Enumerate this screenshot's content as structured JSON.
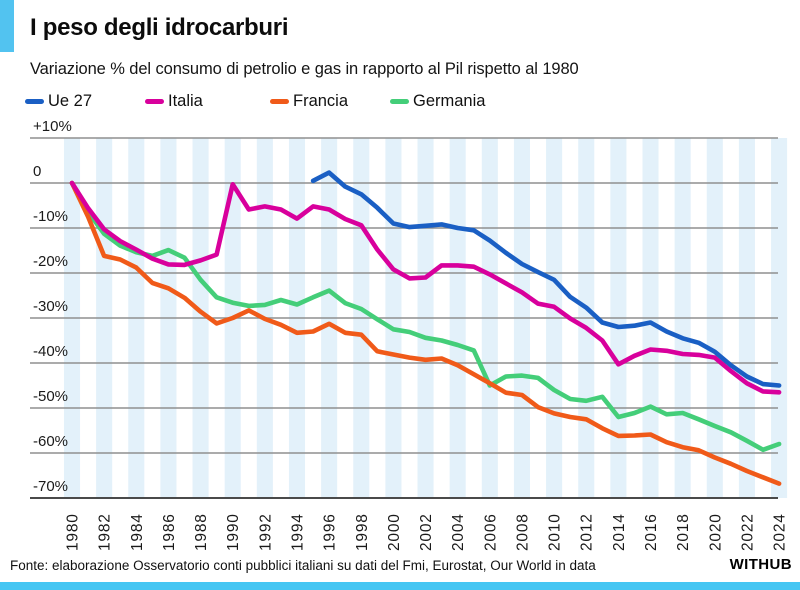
{
  "header": {
    "title": "I peso degli idrocarburi",
    "subtitle": "Variazione % del consumo di petrolio e gas in rapporto al Pil rispetto al 1980"
  },
  "legend": [
    {
      "label": "Ue 27",
      "color": "#1a5fc4"
    },
    {
      "label": "Italia",
      "color": "#d8009c"
    },
    {
      "label": "Francia",
      "color": "#f05a19"
    },
    {
      "label": "Germania",
      "color": "#44ce79"
    }
  ],
  "chart_data": {
    "type": "line",
    "title": "I peso degli idrocarburi",
    "subtitle": "Variazione % del consumo di petrolio e gas in rapporto al Pil rispetto al 1980",
    "xlabel": "",
    "ylabel": "",
    "ylim": [
      -70,
      10
    ],
    "grid": true,
    "legend_position": "top",
    "background_stripes_color": "#e3f1fa",
    "x": [
      1980,
      1981,
      1982,
      1983,
      1984,
      1985,
      1986,
      1987,
      1988,
      1989,
      1990,
      1991,
      1992,
      1993,
      1994,
      1995,
      1996,
      1997,
      1998,
      1999,
      2000,
      2001,
      2002,
      2003,
      2004,
      2005,
      2006,
      2007,
      2008,
      2009,
      2010,
      2011,
      2012,
      2013,
      2014,
      2015,
      2016,
      2017,
      2018,
      2019,
      2020,
      2021,
      2022,
      2023,
      2024
    ],
    "x_tick_labels": [
      "1980",
      "1982",
      "1984",
      "1986",
      "1988",
      "1990",
      "1992",
      "1994",
      "1996",
      "1998",
      "2000",
      "2002",
      "2004",
      "2006",
      "2008",
      "2010",
      "2012",
      "2014",
      "2016",
      "2018",
      "2020",
      "2022",
      "2024"
    ],
    "y_ticks": [
      "+10%",
      "0",
      "-10%",
      "-20%",
      "-30%",
      "-40%",
      "-50%",
      "-60%",
      "-70%"
    ],
    "y_tick_values": [
      10,
      0,
      -10,
      -20,
      -30,
      -40,
      -50,
      -60,
      -70
    ],
    "series": [
      {
        "name": "Ue 27",
        "color": "#1a5fc4",
        "values": [
          null,
          null,
          null,
          null,
          null,
          null,
          null,
          null,
          null,
          null,
          null,
          null,
          null,
          null,
          null,
          0.5,
          2.3,
          -0.8,
          -2.5,
          -5.5,
          -9,
          -9.8,
          -9.5,
          -9.2,
          -10,
          -10.5,
          -12.8,
          -15.5,
          -18,
          -19.8,
          -21.5,
          -25.3,
          -27.7,
          -31,
          -32,
          -31.7,
          -31,
          -33,
          -34.5,
          -35.5,
          -37.5,
          -40.5,
          -43,
          -44.7,
          -45
        ]
      },
      {
        "name": "Italia",
        "color": "#d8009c",
        "values": [
          0,
          -5.6,
          -10.3,
          -12.9,
          -14.8,
          -16.8,
          -18.1,
          -18.2,
          -17.2,
          -15.9,
          -0.3,
          -5.9,
          -5.2,
          -5.9,
          -7.9,
          -5.2,
          -5.9,
          -8,
          -9.4,
          -14.8,
          -19.2,
          -21.2,
          -21,
          -18.3,
          -18.3,
          -18.6,
          -20.3,
          -22.3,
          -24.3,
          -26.8,
          -27.5,
          -30.1,
          -32.2,
          -35,
          -40.3,
          -38.4,
          -37,
          -37.3,
          -38,
          -38.2,
          -38.8,
          -41.8,
          -44.5,
          -46.3,
          -46.5
        ]
      },
      {
        "name": "Francia",
        "color": "#f05a19",
        "values": [
          0,
          -7.5,
          -16.2,
          -17,
          -18.8,
          -22.2,
          -23.4,
          -25.5,
          -28.6,
          -31.2,
          -30,
          -28.3,
          -30.2,
          -31.5,
          -33.3,
          -33,
          -31.3,
          -33.3,
          -33.7,
          -37.4,
          -38.1,
          -38.8,
          -39.3,
          -39,
          -40.5,
          -42.5,
          -44.5,
          -46.6,
          -47.1,
          -49.8,
          -51.2,
          -52,
          -52.5,
          -54.5,
          -56.2,
          -56.1,
          -55.9,
          -57.6,
          -58.7,
          -59.4,
          -61,
          -62.4,
          -64,
          -65.4,
          -66.8
        ]
      },
      {
        "name": "Germania",
        "color": "#44ce79",
        "values": [
          0,
          -6.4,
          -11.3,
          -13.9,
          -15.4,
          -16.2,
          -14.9,
          -16.6,
          -21.5,
          -25.4,
          -26.6,
          -27.3,
          -27.1,
          -26,
          -27,
          -25.4,
          -23.9,
          -26.7,
          -28,
          -30.3,
          -32.5,
          -33.1,
          -34.4,
          -35,
          -36,
          -37.2,
          -45,
          -43,
          -42.8,
          -43.3,
          -46,
          -48,
          -48.4,
          -47.5,
          -52,
          -51.1,
          -49.7,
          -51.4,
          -51.1,
          -52.5,
          -54,
          -55.4,
          -57.3,
          -59.3,
          -58
        ]
      }
    ]
  },
  "footer": {
    "source": "Fonte: elaborazione Osservatorio conti pubblici italiani su dati del Fmi, Eurostat, Our World in data",
    "brand": "WITHUB"
  },
  "colors": {
    "accent_bar": "#52c3f0",
    "bottom_bar": "#45c6f3",
    "stripe": "#e3f1fa",
    "gridline": "#8f8f8f",
    "axis_line": "#4a4a4a",
    "text": "#111111"
  }
}
